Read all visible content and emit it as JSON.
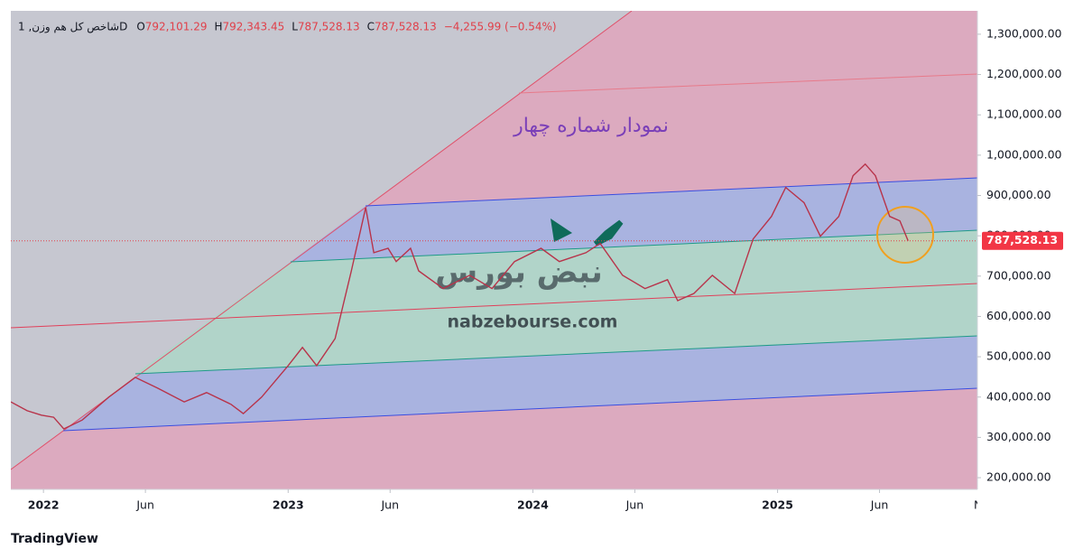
{
  "chart_data": {
    "type": "line",
    "title": "نمودار شماره چهار",
    "header": {
      "symbol": "شاخص کل هم وزن, 1D",
      "ohlc": [
        {
          "key": "O",
          "label": "792,101.29"
        },
        {
          "key": "H",
          "label": "792,343.45"
        },
        {
          "key": "L",
          "label": "787,528.13"
        },
        {
          "key": "C",
          "label": "787,528.13"
        }
      ],
      "change": "−4,255.99 (−0.54%)"
    },
    "watermark": {
      "logo": "نبض بورس",
      "site": "nabzebourse.com"
    },
    "brand": "TradingView",
    "last_price": {
      "value": 787528.13,
      "label": "787,528.13"
    },
    "series": [
      {
        "name": "شاخص کل هم وزن",
        "color": "#b8334a",
        "x": [
          -1.6,
          -0.8,
          -0.1,
          0.5,
          1.0,
          1.9,
          3.2,
          4.5,
          5.6,
          6.9,
          8.0,
          9.2,
          9.8,
          10.7,
          12.0,
          12.7,
          13.4,
          14.3,
          15.1,
          15.8,
          16.2,
          16.9,
          17.3,
          18.0,
          18.4,
          19.6,
          20.9,
          22.0,
          23.1,
          24.4,
          25.3,
          26.6,
          27.3,
          28.4,
          29.5,
          30.6,
          31.1,
          31.9,
          32.8,
          33.9,
          34.8,
          35.7,
          36.4,
          37.3,
          38.1,
          39.0,
          39.7,
          40.3,
          40.8,
          41.5,
          42.0,
          42.4
        ],
        "values": [
          388000,
          366000,
          355000,
          350000,
          321000,
          343000,
          400000,
          449000,
          422000,
          388000,
          411000,
          382000,
          359000,
          400000,
          478000,
          523000,
          478000,
          545000,
          713000,
          870000,
          758000,
          769000,
          736000,
          769000,
          713000,
          669000,
          702000,
          669000,
          736000,
          769000,
          736000,
          758000,
          781000,
          702000,
          669000,
          691000,
          639000,
          657000,
          702000,
          657000,
          792000,
          848000,
          920000,
          882000,
          799000,
          848000,
          949000,
          978000,
          949000,
          848000,
          837000,
          787528.13
        ]
      }
    ],
    "xlim": [
      -1.6,
      45.8
    ],
    "xticks": [
      {
        "value": 0,
        "label": "2022"
      },
      {
        "value": 5,
        "label": "Jun"
      },
      {
        "value": 12,
        "label": "2023"
      },
      {
        "value": 17,
        "label": "Jun"
      },
      {
        "value": 24,
        "label": "2024"
      },
      {
        "value": 29,
        "label": "Jun"
      },
      {
        "value": 36,
        "label": "2025"
      },
      {
        "value": 41,
        "label": "Jun"
      },
      {
        "value": 46,
        "label": "No"
      }
    ],
    "ylim": [
      171000,
      1358000
    ],
    "yticks": [
      {
        "value": 200000,
        "label": "200,000.00"
      },
      {
        "value": 300000,
        "label": "300,000.00"
      },
      {
        "value": 400000,
        "label": "400,000.00"
      },
      {
        "value": 500000,
        "label": "500,000.00"
      },
      {
        "value": 600000,
        "label": "600,000.00"
      },
      {
        "value": 700000,
        "label": "700,000.00"
      },
      {
        "value": 800000,
        "label": "800,000.00"
      },
      {
        "value": 900000,
        "label": "900,000.00"
      },
      {
        "value": 1000000,
        "label": "1,000,000.00"
      },
      {
        "value": 1100000,
        "label": "1,100,000.00"
      },
      {
        "value": 1200000,
        "label": "1,200,000.00"
      },
      {
        "value": 1300000,
        "label": "1,300,000.00"
      }
    ]
  }
}
